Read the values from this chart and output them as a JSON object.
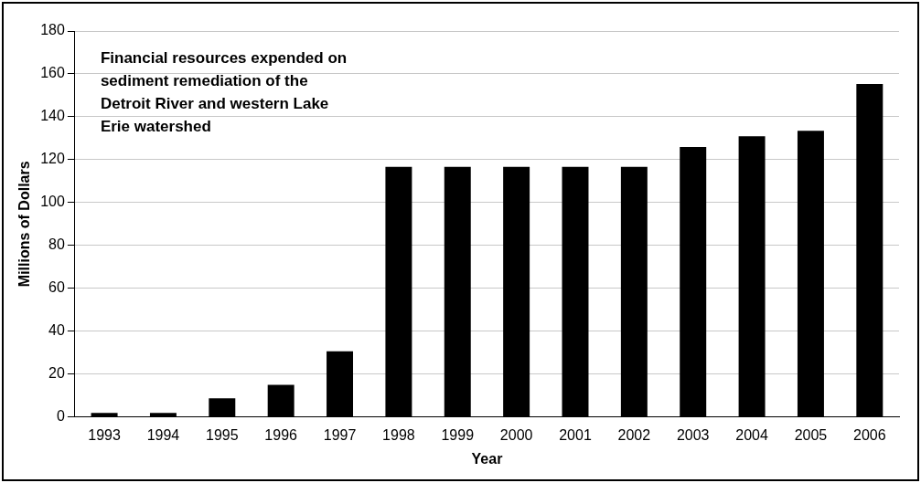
{
  "chart_data": {
    "type": "bar",
    "title": "Financial resources expended on\nsediment remediation of the\nDetroit River and western Lake\nErie watershed",
    "xlabel": "Year",
    "ylabel": "Millions of Dollars",
    "categories": [
      "1993",
      "1994",
      "1995",
      "1996",
      "1997",
      "1998",
      "1999",
      "2000",
      "2001",
      "2002",
      "2003",
      "2004",
      "2005",
      "2006"
    ],
    "values": [
      1.8,
      1.8,
      8.7,
      14.9,
      30.6,
      116.6,
      116.6,
      116.6,
      116.6,
      116.6,
      125.9,
      130.9,
      133.5,
      155.3
    ],
    "color": "#000000",
    "ylim": [
      0,
      180
    ],
    "yticks": [
      0,
      20,
      40,
      60,
      80,
      100,
      120,
      140,
      160,
      180
    ],
    "grid": "y",
    "legend": false
  }
}
